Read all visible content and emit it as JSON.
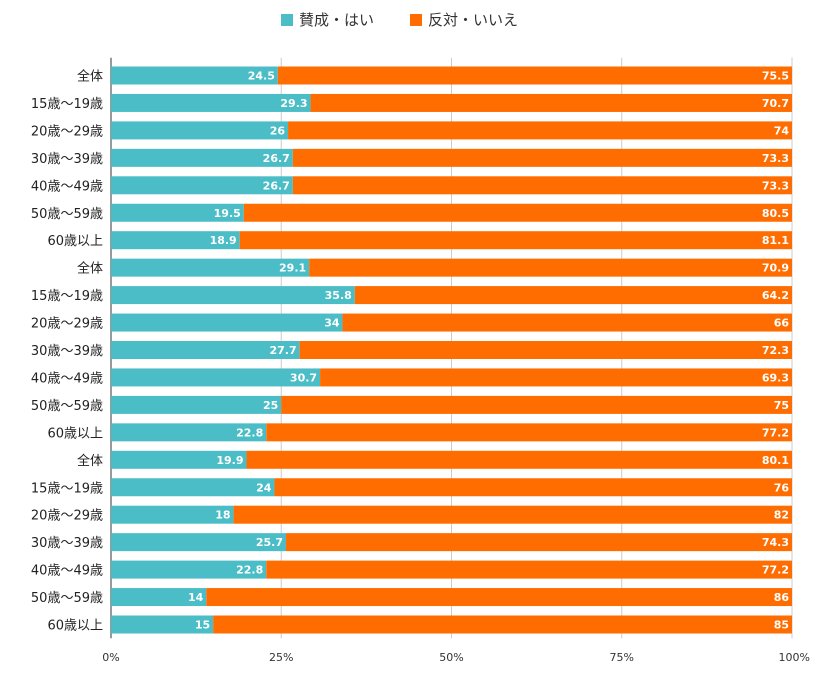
{
  "chart_data": {
    "type": "bar",
    "orientation": "horizontal",
    "stacked": "percent",
    "legend_position": "top",
    "grid": true,
    "xlim": [
      0,
      100
    ],
    "ticks": [
      "0%",
      "25%",
      "50%",
      "75%",
      "100%"
    ],
    "tick_values": [
      0,
      25,
      50,
      75,
      100
    ],
    "categories": [
      "全体",
      "15歳〜19歳",
      "20歳〜29歳",
      "30歳〜39歳",
      "40歳〜49歳",
      "50歳〜59歳",
      "60歳以上",
      "全体",
      "15歳〜19歳",
      "20歳〜29歳",
      "30歳〜39歳",
      "40歳〜49歳",
      "50歳〜59歳",
      "60歳以上",
      "全体",
      "15歳〜19歳",
      "20歳〜29歳",
      "30歳〜39歳",
      "40歳〜49歳",
      "50歳〜59歳",
      "60歳以上"
    ],
    "series": [
      {
        "name": "賛成・はい",
        "color": "#4bbdc7",
        "values": [
          24.5,
          29.3,
          26,
          26.7,
          26.7,
          19.5,
          18.9,
          29.1,
          35.8,
          34,
          27.7,
          30.7,
          25,
          22.8,
          19.9,
          24,
          18,
          25.7,
          22.8,
          14,
          15
        ]
      },
      {
        "name": "反対・いいえ",
        "color": "#ff6d01",
        "values": [
          75.5,
          70.7,
          74,
          73.3,
          73.3,
          80.5,
          81.1,
          70.9,
          64.2,
          66,
          72.3,
          69.3,
          75,
          77.2,
          80.1,
          76,
          82,
          74.3,
          77.2,
          86,
          85
        ]
      }
    ]
  }
}
